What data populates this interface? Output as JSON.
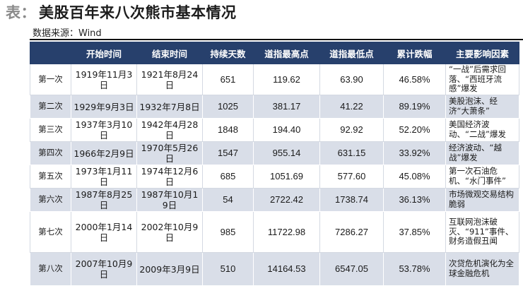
{
  "title": {
    "prefix": "表：",
    "text": "美股百年来八次熊市基本情况"
  },
  "source": "数据来源：Wind",
  "table": {
    "headers": [
      "",
      "开始时间",
      "结束时间",
      "持续天数",
      "道指最高点",
      "道指最低点",
      "累计跌幅",
      "主要影响因素"
    ],
    "rows": [
      {
        "idx": "第一次",
        "start": "1919年11月3日",
        "end": "1921年8月24日",
        "days": "651",
        "high": "119.62",
        "low": "63.90",
        "drop": "46.58%",
        "cause": "“一战”后需求回落、“西班牙流感”爆发"
      },
      {
        "idx": "第二次",
        "start": "1929年9月3日",
        "end": "1932年7月8日",
        "days": "1025",
        "high": "381.17",
        "low": "41.22",
        "drop": "89.19%",
        "cause": "美股泡沫、经济“大萧条”"
      },
      {
        "idx": "第三次",
        "start": "1937年3月10日",
        "end": "1942年4月28日",
        "days": "1848",
        "high": "194.40",
        "low": "92.92",
        "drop": "52.20%",
        "cause": "美国经济波动、“二战”爆发"
      },
      {
        "idx": "第四次",
        "start": "1966年2月9日",
        "end": "1970年5月26日",
        "days": "1547",
        "high": "955.14",
        "low": "631.15",
        "drop": "33.92%",
        "cause": "经济波动、“越战”爆发"
      },
      {
        "idx": "第五次",
        "start": "1973年1月11日",
        "end": "1974年12月6日",
        "days": "685",
        "high": "1051.69",
        "low": "577.60",
        "drop": "45.08%",
        "cause": "第一次石油危机、“水门事件”"
      },
      {
        "idx": "第六次",
        "start": "1987年8月25日",
        "end": "1987年10月19日",
        "days": "54",
        "high": "2722.42",
        "low": "1738.74",
        "drop": "36.13%",
        "cause": "市场微观交易结构脆弱"
      },
      {
        "idx": "第七次",
        "start": "2000年1月14日",
        "end": "2002年10月9日",
        "days": "985",
        "high": "11722.98",
        "low": "7286.27",
        "drop": "37.85%",
        "cause": "互联网泡沫破灭、“911”事件、财务造假丑闻"
      },
      {
        "idx": "第八次",
        "start": "2007年10月9日",
        "end": "2009年3月9日",
        "days": "510",
        "high": "14164.53",
        "low": "6547.05",
        "drop": "53.78%",
        "cause": "次贷危机演化为全球金融危机"
      }
    ]
  }
}
